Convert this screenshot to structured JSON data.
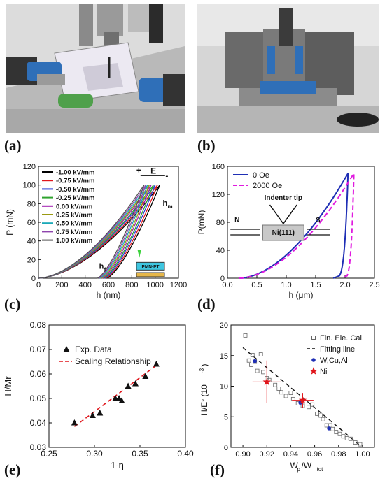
{
  "labels": {
    "a": "(a)",
    "b": "(b)",
    "c": "(c)",
    "d": "(d)",
    "e": "(e)",
    "f": "(f)"
  },
  "chart_data": [
    {
      "id": "c",
      "type": "line",
      "xlabel": "h (nm)",
      "ylabel": "P (mN)",
      "xlim": [
        0,
        1200
      ],
      "ylim": [
        0,
        120
      ],
      "xticks": [
        0,
        200,
        400,
        600,
        800,
        1000,
        1200
      ],
      "yticks": [
        0,
        20,
        40,
        60,
        80,
        100,
        120
      ],
      "annotations": {
        "E": "E",
        "plus": "+",
        "minus": "-",
        "hm": "h",
        "hm_sub": "m",
        "hf": "h",
        "hf_sub": "f",
        "inset": "PMN-PT"
      },
      "series": [
        {
          "name": "-1.00 kV/mm",
          "color": "#000000",
          "hmax": 1040,
          "hf": 585
        },
        {
          "name": "-0.75 kV/mm",
          "color": "#e0161c",
          "hmax": 1020,
          "hf": 575
        },
        {
          "name": "-0.50 kV/mm",
          "color": "#2a3fd6",
          "hmax": 1000,
          "hf": 565
        },
        {
          "name": "-0.25 kV/mm",
          "color": "#2fa32f",
          "hmax": 985,
          "hf": 555
        },
        {
          "name": "0.00 kV/mm",
          "color": "#a21fb0",
          "hmax": 965,
          "hf": 545
        },
        {
          "name": "0.25 kV/mm",
          "color": "#9a9a12",
          "hmax": 950,
          "hf": 535
        },
        {
          "name": "0.50 kV/mm",
          "color": "#1aa9b8",
          "hmax": 935,
          "hf": 525
        },
        {
          "name": "0.75 kV/mm",
          "color": "#8e44ad",
          "hmax": 920,
          "hf": 515
        },
        {
          "name": "1.00 kV/mm",
          "color": "#555555",
          "hmax": 905,
          "hf": 505
        }
      ],
      "pmax": 100
    },
    {
      "id": "d",
      "type": "line",
      "xlabel": "h (μm)",
      "ylabel": "P(mN)",
      "xlim": [
        0,
        2.5
      ],
      "ylim": [
        0,
        160
      ],
      "xticks": [
        0.0,
        0.5,
        1.0,
        1.5,
        2.0,
        2.5
      ],
      "yticks": [
        0,
        40,
        80,
        120,
        160
      ],
      "annotations": {
        "tip": "Indenter tip",
        "N": "N",
        "S": "S",
        "sample": "Ni(111)"
      },
      "series": [
        {
          "name": "0 Oe",
          "color": "#1f2fb5",
          "dash": false,
          "hmax": 2.05,
          "pmax": 150,
          "hf": 1.8
        },
        {
          "name": "2000 Oe",
          "color": "#e01adf",
          "dash": true,
          "hmax": 2.15,
          "pmax": 150,
          "hf": 1.95
        }
      ]
    },
    {
      "id": "e",
      "type": "scatter",
      "xlabel": "1-η",
      "ylabel": "H/Mr",
      "xlim": [
        0.25,
        0.4
      ],
      "ylim": [
        0.03,
        0.08
      ],
      "xticks": [
        0.25,
        0.3,
        0.35,
        0.4
      ],
      "yticks": [
        0.03,
        0.04,
        0.05,
        0.06,
        0.07,
        0.08
      ],
      "series": [
        {
          "name": "Exp. Data",
          "color": "#000000",
          "points": [
            [
              0.278,
              0.04
            ],
            [
              0.298,
              0.043
            ],
            [
              0.306,
              0.044
            ],
            [
              0.323,
              0.05
            ],
            [
              0.327,
              0.05
            ],
            [
              0.33,
              0.049
            ],
            [
              0.337,
              0.055
            ],
            [
              0.345,
              0.056
            ],
            [
              0.356,
              0.059
            ],
            [
              0.368,
              0.064
            ]
          ]
        },
        {
          "name": "Scaling Relationship",
          "color": "#e0161c",
          "dash": true,
          "line": [
            [
              0.278,
              0.0385
            ],
            [
              0.368,
              0.0635
            ]
          ]
        }
      ]
    },
    {
      "id": "f",
      "type": "scatter",
      "xlabel": "W",
      "xlabel_sub1": "p",
      "xlabel_mid": "/W",
      "xlabel_sub2": "tot",
      "ylabel": "H/Er (10",
      "ylabel_sup": "-3",
      "ylabel_end": ")",
      "xlim": [
        0.89,
        1.01
      ],
      "ylim": [
        0,
        20
      ],
      "xticks": [
        0.9,
        0.92,
        0.94,
        0.96,
        0.98,
        1.0
      ],
      "yticks": [
        0,
        5,
        10,
        15,
        20
      ],
      "series": [
        {
          "name": "Fin. Ele. Cal.",
          "color": "#555555",
          "points": [
            [
              0.902,
              18.3
            ],
            [
              0.905,
              14.2
            ],
            [
              0.907,
              13.5
            ],
            [
              0.908,
              15.1
            ],
            [
              0.91,
              14.0
            ],
            [
              0.912,
              12.5
            ],
            [
              0.915,
              15.2
            ],
            [
              0.917,
              12.3
            ],
            [
              0.92,
              11.3
            ],
            [
              0.922,
              11.0
            ],
            [
              0.927,
              10.2
            ],
            [
              0.93,
              9.6
            ],
            [
              0.932,
              9.0
            ],
            [
              0.936,
              8.4
            ],
            [
              0.94,
              8.9
            ],
            [
              0.942,
              7.9
            ],
            [
              0.946,
              7.2
            ],
            [
              0.95,
              6.8
            ],
            [
              0.955,
              6.6
            ],
            [
              0.958,
              7.0
            ],
            [
              0.962,
              5.5
            ],
            [
              0.965,
              5.2
            ],
            [
              0.967,
              4.6
            ],
            [
              0.97,
              3.6
            ],
            [
              0.973,
              3.6
            ],
            [
              0.975,
              3.0
            ],
            [
              0.978,
              2.5
            ],
            [
              0.981,
              2.2
            ],
            [
              0.984,
              1.8
            ],
            [
              0.987,
              1.5
            ],
            [
              0.99,
              1.4
            ],
            [
              0.994,
              0.8
            ],
            [
              0.998,
              0.5
            ]
          ]
        },
        {
          "name": "Fitting line",
          "color": "#000000",
          "dash": true,
          "line": [
            [
              0.9,
              16.3
            ],
            [
              0.998,
              0.3
            ]
          ]
        },
        {
          "name": "W,Cu,Al",
          "color": "#1f2fb5",
          "points": [
            [
              0.91,
              14.1
            ],
            [
              0.948,
              7.3
            ],
            [
              0.972,
              3.1
            ]
          ]
        },
        {
          "name": "Ni",
          "color": "#e0161c",
          "points": [
            [
              0.92,
              10.7
            ],
            [
              0.95,
              7.7
            ]
          ],
          "errors": [
            [
              0.012,
              3.5
            ],
            [
              0.009,
              1.2
            ]
          ]
        }
      ]
    }
  ]
}
